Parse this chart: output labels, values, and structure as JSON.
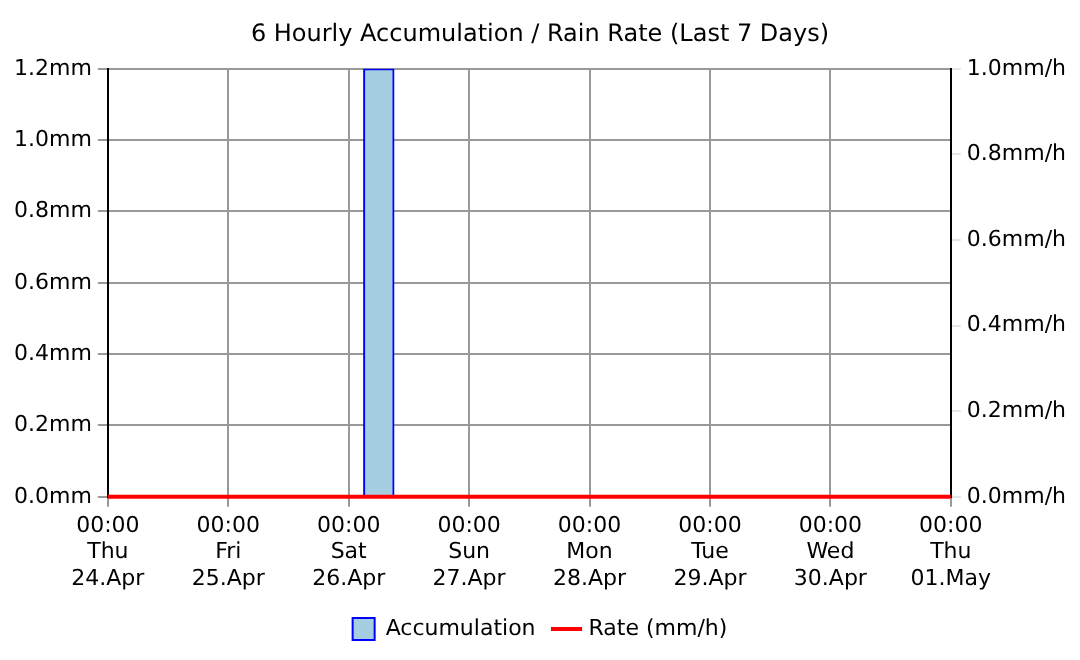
{
  "chart_data": {
    "type": "bar",
    "title": "6 Hourly Accumulation / Rain Rate (Last 7 Days)",
    "categories": [
      "00:00\nThu\n24.Apr",
      null,
      null,
      null,
      "00:00\nFri\n25.Apr",
      null,
      null,
      null,
      "00:00\nSat\n26.Apr",
      null,
      null,
      null,
      "00:00\nSun\n27.Apr",
      null,
      null,
      null,
      "00:00\nMon\n28.Apr",
      null,
      null,
      null,
      "00:00\nTue\n29.Apr",
      null,
      null,
      null,
      "00:00\nWed\n30.Apr",
      null,
      null,
      null,
      "00:00\nThu\n01.May"
    ],
    "series": [
      {
        "name": "Accumulation",
        "color": "#a6cee3",
        "values": [
          0,
          0,
          0,
          0,
          0,
          0,
          0,
          0,
          0,
          1.2,
          0,
          0,
          0,
          0,
          0,
          0,
          0,
          0,
          0,
          0,
          0,
          0,
          0,
          0,
          0,
          0,
          0,
          0,
          0
        ]
      },
      {
        "name": "Rate (mm/h)",
        "type": "line",
        "axis": "y2",
        "color": "#ff0000",
        "values": [
          0,
          0,
          0,
          0,
          0,
          0,
          0,
          0,
          0,
          0,
          0,
          0,
          0,
          0,
          0,
          0,
          0,
          0,
          0,
          0,
          0,
          0,
          0,
          0,
          0,
          0,
          0,
          0,
          0
        ]
      }
    ],
    "ylim": [
      0,
      1.2
    ],
    "yticks": [
      {
        "value": 0,
        "label": "0.0mm"
      },
      {
        "value": 0.2,
        "label": "0.2mm"
      },
      {
        "value": 0.4,
        "label": "0.4mm"
      },
      {
        "value": 0.6,
        "label": "0.6mm"
      },
      {
        "value": 0.8,
        "label": "0.8mm"
      },
      {
        "value": 1.0,
        "label": "1.0mm"
      },
      {
        "value": 1.2,
        "label": "1.2mm"
      }
    ],
    "y2lim": [
      0,
      1
    ],
    "y2ticks": [
      {
        "value": 0,
        "label": "0.0mm/h"
      },
      {
        "value": 0.2,
        "label": "0.2mm/h"
      },
      {
        "value": 0.4,
        "label": "0.4mm/h"
      },
      {
        "value": 0.6,
        "label": "0.6mm/h"
      },
      {
        "value": 0.8,
        "label": "0.8mm/h"
      },
      {
        "value": 1.0,
        "label": "1.0mm/h"
      }
    ],
    "grid": true,
    "legend": "bottom",
    "line_style": "solid",
    "marker": "none"
  }
}
